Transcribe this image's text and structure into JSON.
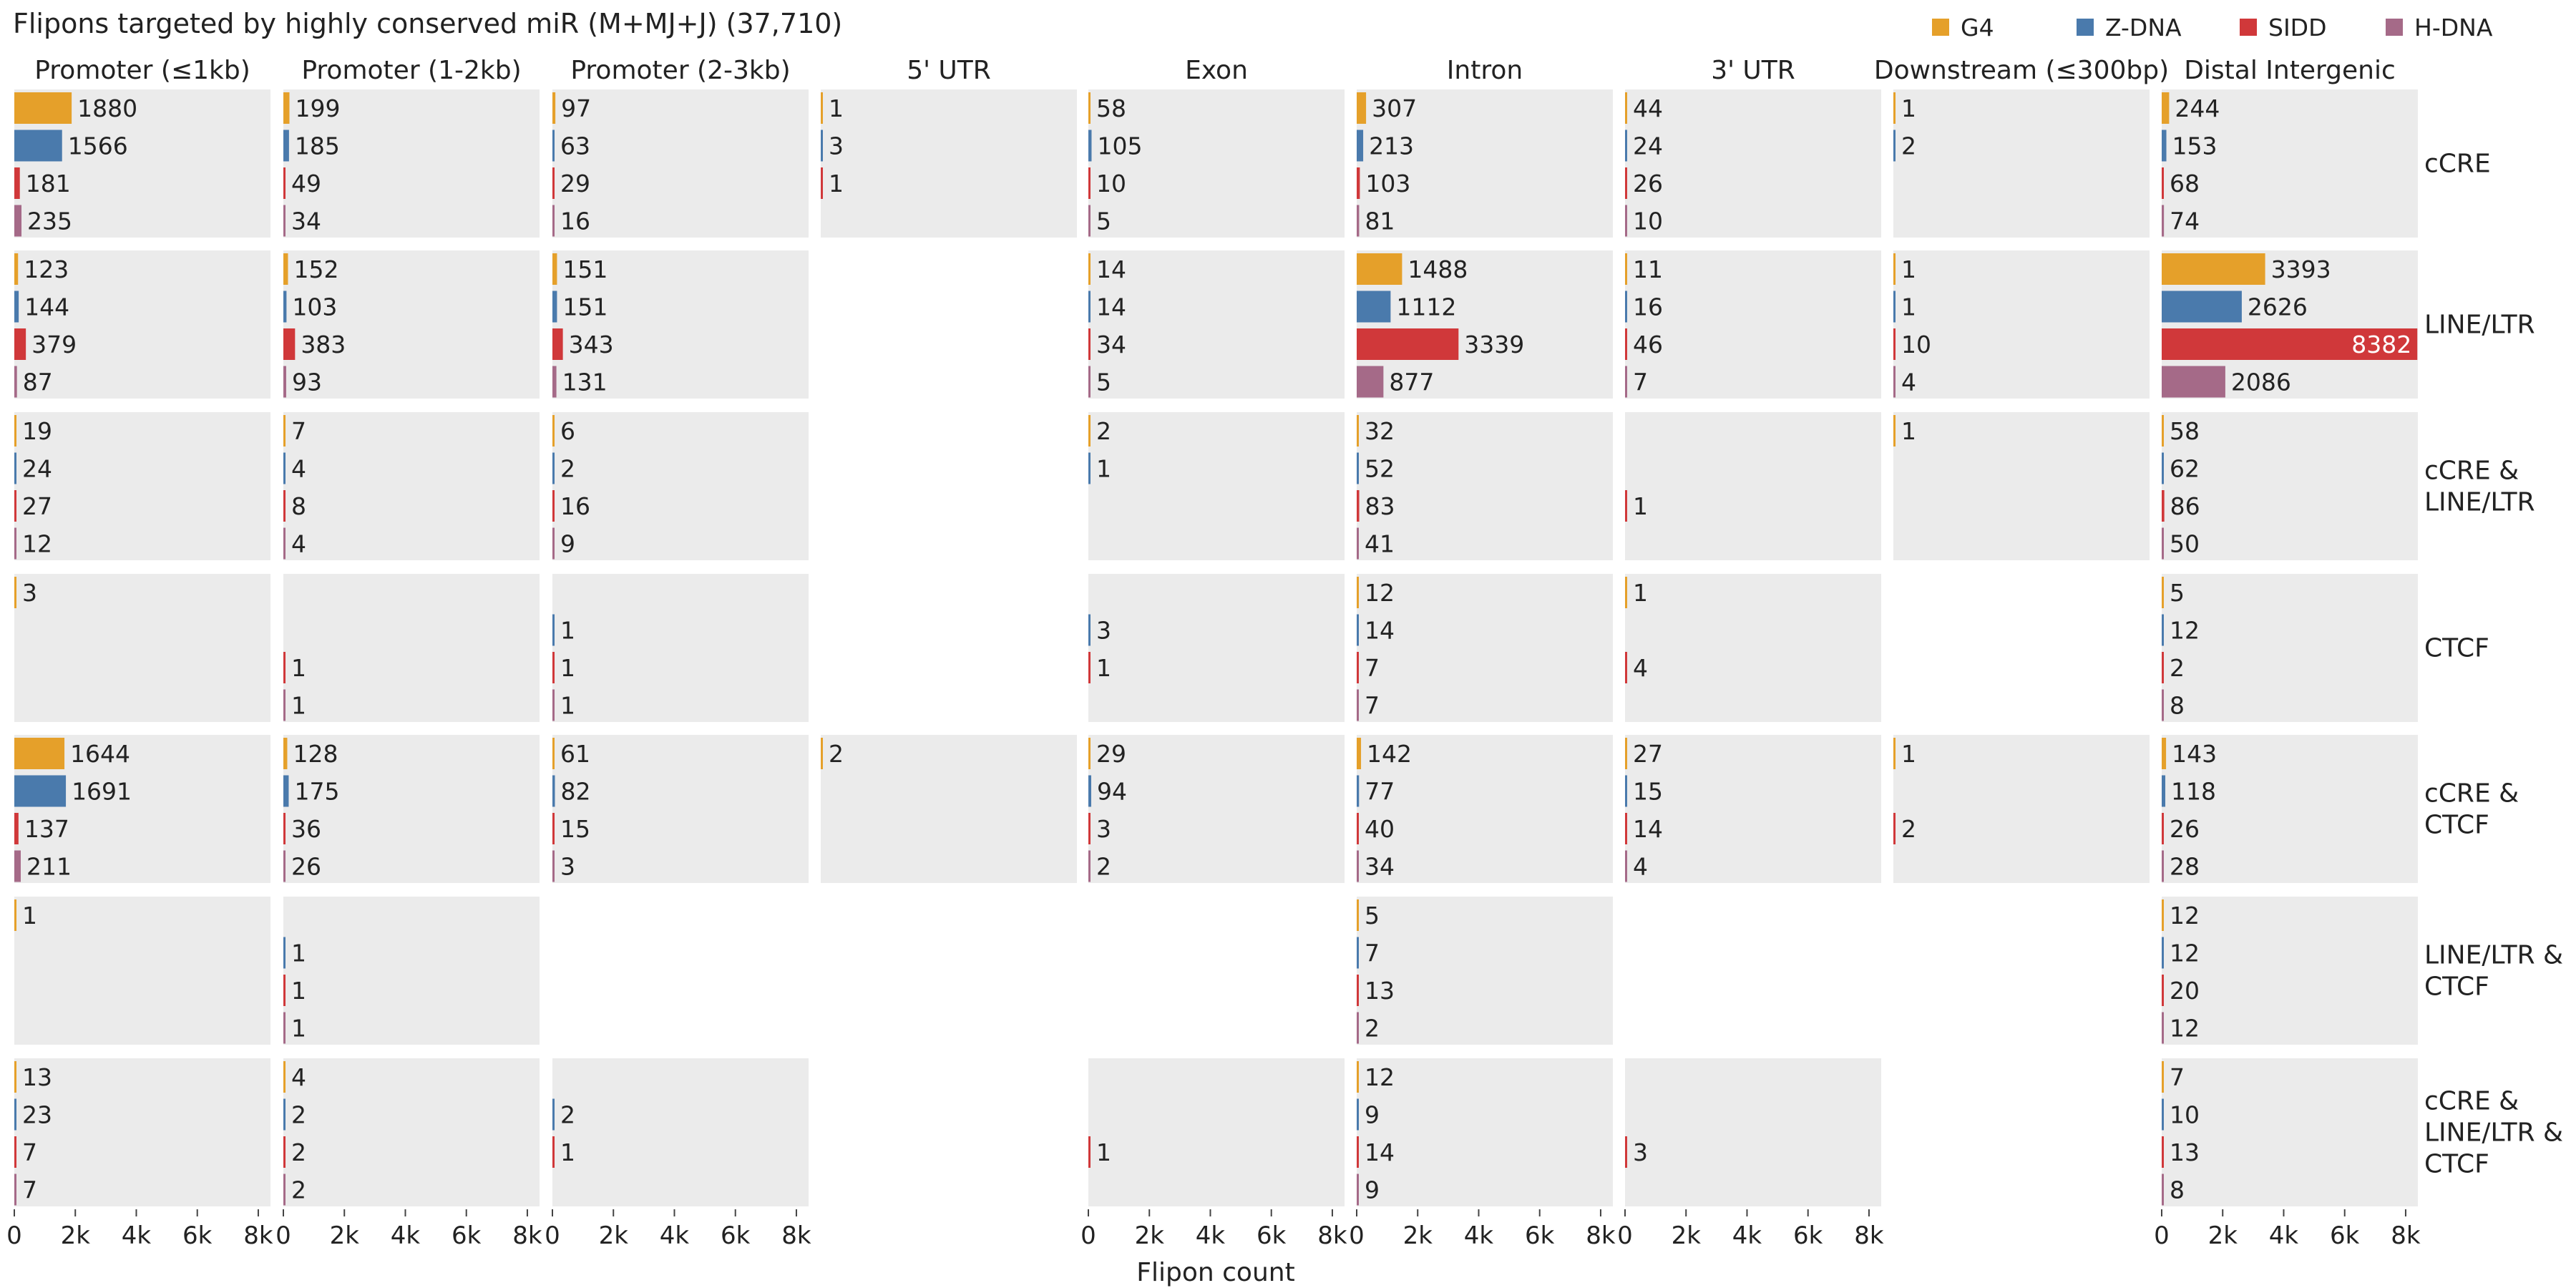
{
  "chart_data": {
    "type": "bar",
    "orientation": "horizontal",
    "title": "Flipons targeted by highly conserved miR (M+MJ+J) (37,710)",
    "xlabel": "Flipon count",
    "xlim": [
      0,
      8400
    ],
    "xticks": [
      0,
      2000,
      4000,
      6000,
      8000
    ],
    "xtick_labels": [
      "0",
      "2k",
      "4k",
      "6k",
      "8k"
    ],
    "grid": false,
    "legend_position": "top-right",
    "series": [
      {
        "name": "G4",
        "color": "#E5A02A"
      },
      {
        "name": "Z-DNA",
        "color": "#4A7AAC"
      },
      {
        "name": "SIDD",
        "color": "#D0383A"
      },
      {
        "name": "H-DNA",
        "color": "#A56A88"
      }
    ],
    "columns": [
      "Promoter (≤1kb)",
      "Promoter (1-2kb)",
      "Promoter (2-3kb)",
      "5' UTR",
      "Exon",
      "Intron",
      "3' UTR",
      "Downstream (≤300bp)",
      "Distal Intergenic"
    ],
    "rows": [
      {
        "label": [
          "cCRE"
        ]
      },
      {
        "label": [
          "LINE/LTR"
        ]
      },
      {
        "label": [
          "cCRE &",
          "LINE/LTR"
        ]
      },
      {
        "label": [
          "CTCF"
        ]
      },
      {
        "label": [
          "cCRE &",
          "CTCF"
        ]
      },
      {
        "label": [
          "LINE/LTR &",
          "CTCF"
        ]
      },
      {
        "label": [
          "cCRE &",
          "LINE/LTR &",
          "CTCF"
        ]
      }
    ],
    "values": [
      [
        [
          1880,
          1566,
          181,
          235
        ],
        [
          199,
          185,
          49,
          34
        ],
        [
          97,
          63,
          29,
          16
        ],
        [
          1,
          3,
          1,
          null
        ],
        [
          58,
          105,
          10,
          5
        ],
        [
          307,
          213,
          103,
          81
        ],
        [
          44,
          24,
          26,
          10
        ],
        [
          1,
          2,
          null,
          null
        ],
        [
          244,
          153,
          68,
          74
        ]
      ],
      [
        [
          123,
          144,
          379,
          87
        ],
        [
          152,
          103,
          383,
          93
        ],
        [
          151,
          151,
          343,
          131
        ],
        null,
        [
          14,
          14,
          34,
          5
        ],
        [
          1488,
          1112,
          3339,
          877
        ],
        [
          11,
          16,
          46,
          7
        ],
        [
          1,
          1,
          10,
          4
        ],
        [
          3393,
          2626,
          8382,
          2086
        ]
      ],
      [
        [
          19,
          24,
          27,
          12
        ],
        [
          7,
          4,
          8,
          4
        ],
        [
          6,
          2,
          16,
          9
        ],
        null,
        [
          2,
          1,
          null,
          null
        ],
        [
          32,
          52,
          83,
          41
        ],
        [
          null,
          null,
          1,
          null
        ],
        [
          1,
          null,
          null,
          null
        ],
        [
          58,
          62,
          86,
          50
        ]
      ],
      [
        [
          3,
          null,
          null,
          null
        ],
        [
          null,
          null,
          1,
          1
        ],
        [
          null,
          1,
          1,
          1
        ],
        null,
        [
          null,
          3,
          1,
          null
        ],
        [
          12,
          14,
          7,
          7
        ],
        [
          1,
          null,
          4,
          null
        ],
        null,
        [
          5,
          12,
          2,
          8
        ]
      ],
      [
        [
          1644,
          1691,
          137,
          211
        ],
        [
          128,
          175,
          36,
          26
        ],
        [
          61,
          82,
          15,
          3
        ],
        [
          2,
          null,
          null,
          null
        ],
        [
          29,
          94,
          3,
          2
        ],
        [
          142,
          77,
          40,
          34
        ],
        [
          27,
          15,
          14,
          4
        ],
        [
          1,
          null,
          2,
          null
        ],
        [
          143,
          118,
          26,
          28
        ]
      ],
      [
        [
          1,
          null,
          null,
          null
        ],
        [
          null,
          1,
          1,
          1
        ],
        null,
        null,
        null,
        [
          5,
          7,
          13,
          2
        ],
        null,
        null,
        [
          12,
          12,
          20,
          12
        ]
      ],
      [
        [
          13,
          23,
          7,
          7
        ],
        [
          4,
          2,
          2,
          2
        ],
        [
          null,
          2,
          1,
          null
        ],
        null,
        [
          null,
          null,
          1,
          null
        ],
        [
          12,
          9,
          14,
          9
        ],
        [
          null,
          null,
          3,
          null
        ],
        null,
        [
          7,
          10,
          13,
          8
        ]
      ]
    ]
  }
}
